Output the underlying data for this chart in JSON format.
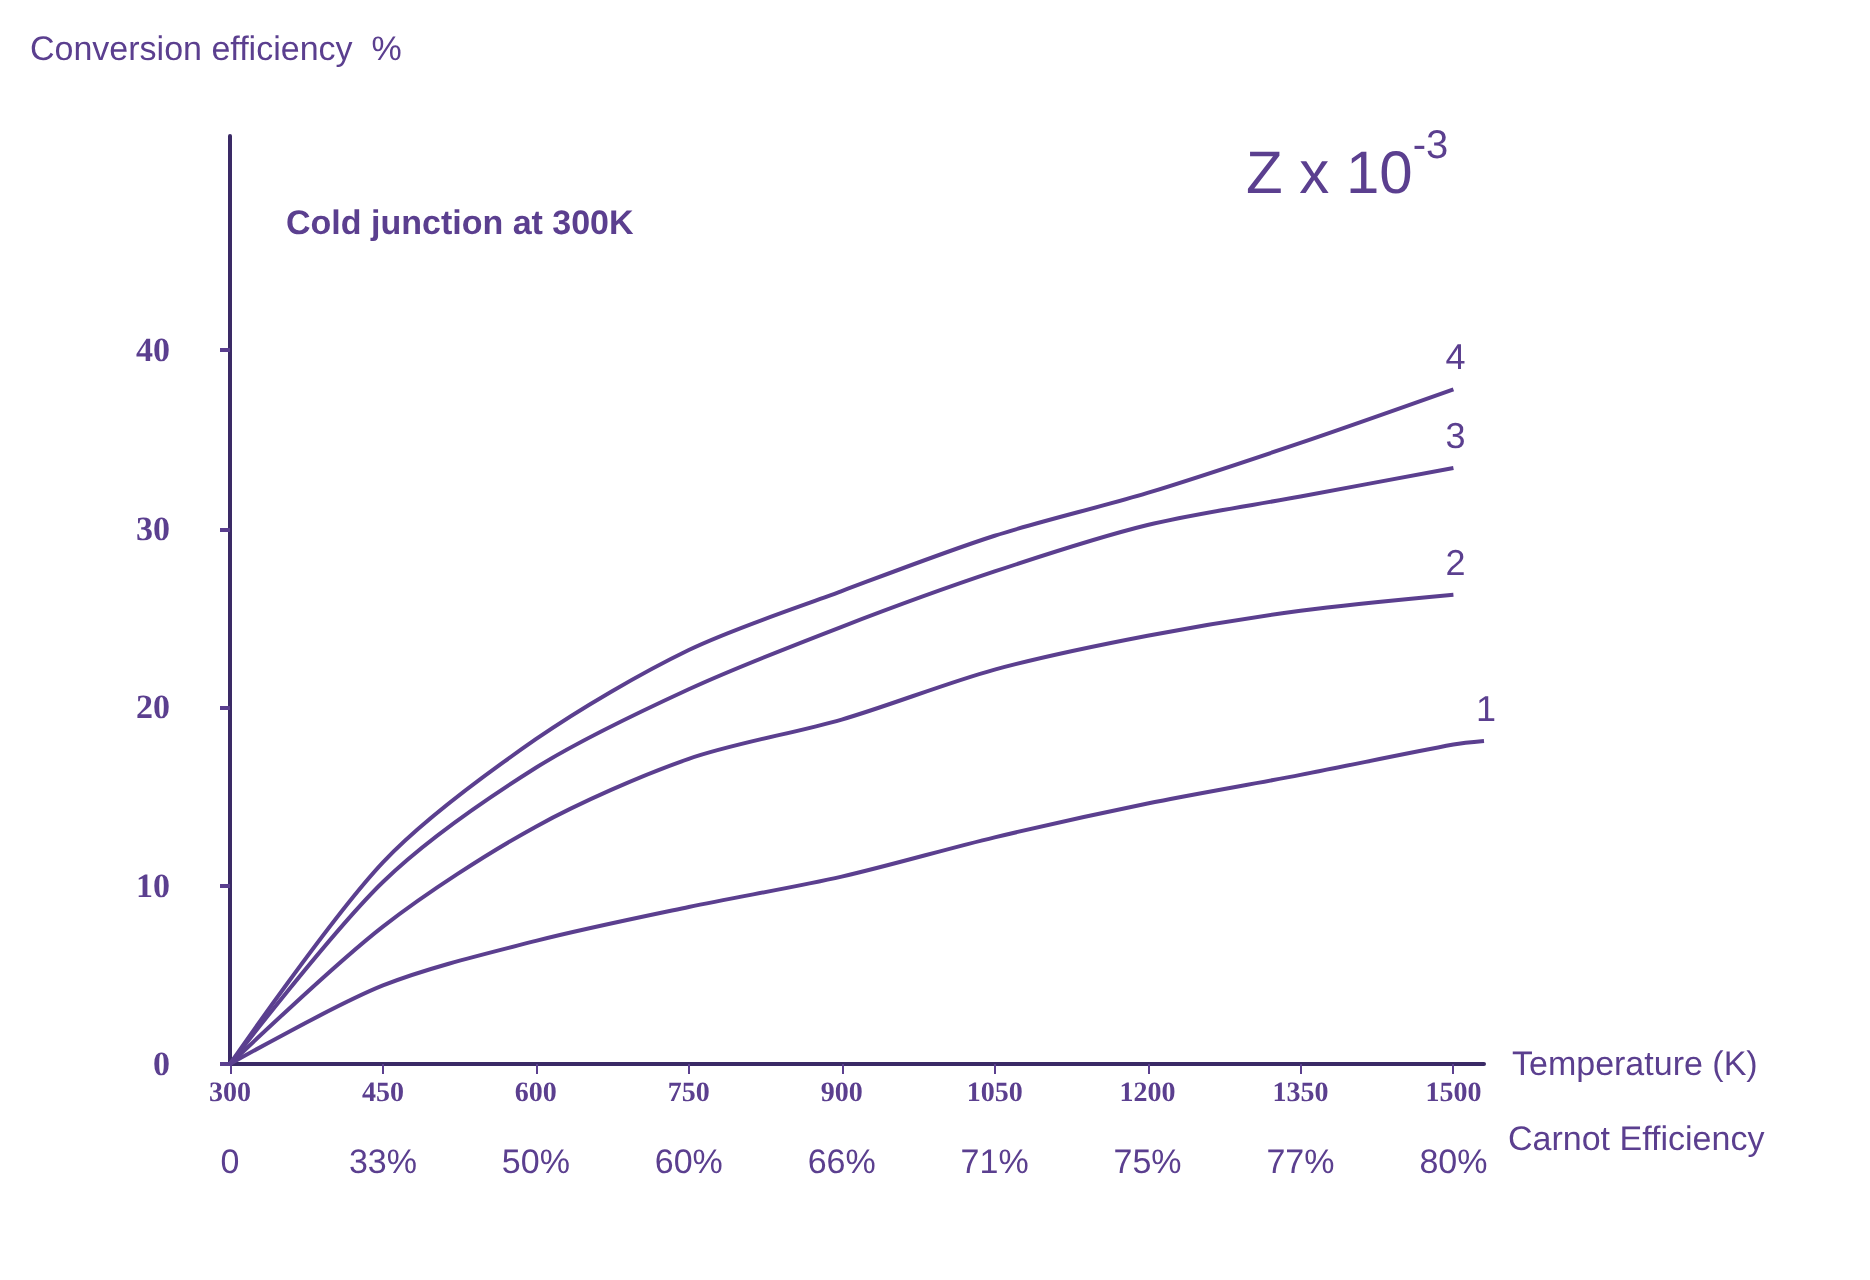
{
  "chart_data": {
    "type": "line",
    "ylabel": "Conversion efficiency  %",
    "xlabel": "Temperature (K)",
    "annotations": [
      "Cold junction at 300K",
      "Z x 10$^{-3}$",
      "Carnot Efficiency",
      "0",
      "33%",
      "50%",
      "60%",
      "66%",
      "71%",
      "75%",
      "77%",
      "80%"
    ],
    "x": [
      300,
      450,
      600,
      750,
      900,
      1050,
      1200,
      1350,
      1500
    ],
    "series": [
      {
        "name": "1",
        "color": "#5b3f8f",
        "x": [
          300,
          450,
          600,
          750,
          900,
          1050,
          1200,
          1350,
          1500,
          1530
        ],
        "values": [
          0,
          4.4,
          6.9,
          8.8,
          10.5,
          12.7,
          14.6,
          16.2,
          17.9,
          18.1
        ]
      },
      {
        "name": "2",
        "color": "#5b3f8f",
        "values": [
          0,
          7.7,
          13.3,
          17.1,
          19.3,
          22.1,
          24,
          25.4,
          26.3
        ]
      },
      {
        "name": "3",
        "color": "#5b3f8f",
        "values": [
          0,
          10.2,
          16.6,
          21,
          24.5,
          27.6,
          30.2,
          31.8,
          33.4
        ]
      },
      {
        "name": "4",
        "color": "#5b3f8f",
        "values": [
          0,
          11.3,
          18.2,
          23.2,
          26.5,
          29.6,
          32,
          34.8,
          37.8
        ]
      }
    ],
    "xlim": [
      300,
      1530
    ],
    "xticks": [
      300,
      450,
      600,
      750,
      900,
      1050,
      1200,
      1350,
      1500
    ],
    "ylim": [
      0,
      52
    ],
    "yticks": [
      0,
      10,
      20,
      30,
      40
    ],
    "grid": false,
    "legend": false,
    "marker": "none",
    "line_style": "solid"
  }
}
